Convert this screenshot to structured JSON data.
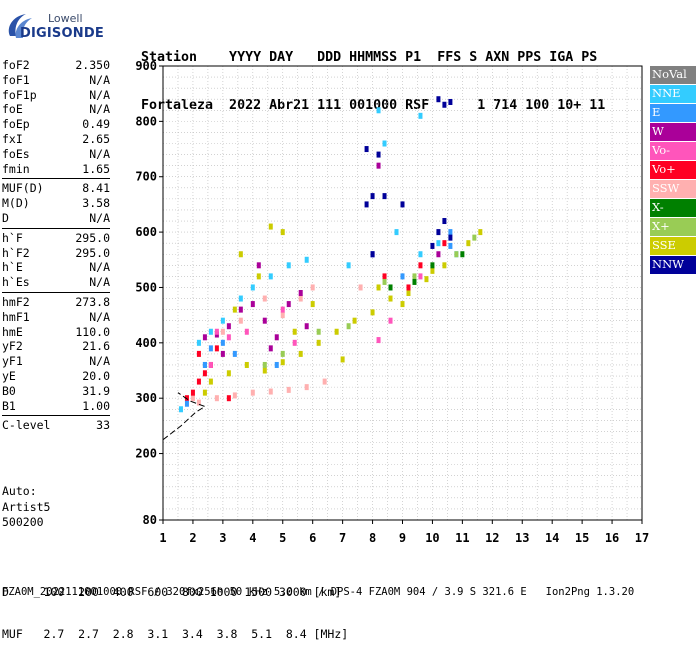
{
  "logo": {
    "brand_top": "Lowell",
    "brand_main": "DIGISONDE"
  },
  "header": {
    "line1": "Station    YYYY DAY   DDD HHMMSS P1  FFS S AXN PPS IGA PS",
    "line2": "Fortaleza  2022 Abr21 111 001000 RSF      1 714 100 10+ 11"
  },
  "params": [
    {
      "name": "foF2",
      "value": "2.350"
    },
    {
      "name": "foF1",
      "value": "N/A"
    },
    {
      "name": "foF1p",
      "value": "N/A"
    },
    {
      "name": "foE",
      "value": "N/A"
    },
    {
      "name": "foEp",
      "value": "0.49"
    },
    {
      "name": "fxI",
      "value": "2.65"
    },
    {
      "name": "foEs",
      "value": "N/A"
    },
    {
      "name": "fmin",
      "value": "1.65"
    },
    {
      "name": "MUF(D)",
      "value": "8.41"
    },
    {
      "name": "M(D)",
      "value": "3.58"
    },
    {
      "name": "D",
      "value": "N/A"
    },
    {
      "name": "h`F",
      "value": "295.0"
    },
    {
      "name": "h`F2",
      "value": "295.0"
    },
    {
      "name": "h`E",
      "value": "N/A"
    },
    {
      "name": "h`Es",
      "value": "N/A"
    },
    {
      "name": "hmF2",
      "value": "273.8"
    },
    {
      "name": "hmF1",
      "value": "N/A"
    },
    {
      "name": "hmE",
      "value": "110.0"
    },
    {
      "name": "yF2",
      "value": "21.6"
    },
    {
      "name": "yF1",
      "value": "N/A"
    },
    {
      "name": "yE",
      "value": "20.0"
    },
    {
      "name": "B0",
      "value": "31.9"
    },
    {
      "name": "B1",
      "value": "1.00"
    },
    {
      "name": "C-level",
      "value": "33"
    }
  ],
  "auto": {
    "line1": "Auto:",
    "line2": "Artist5",
    "line3": "500200"
  },
  "muf_table": {
    "d_line": "D     100  200  400  600  800 1000 1500 3000 [km]",
    "muf_line": "MUF   2.7  2.7  2.8  3.1  3.4  3.8  5.1  8.4 [MHz]"
  },
  "footer": "FZA0M_2022111001000.RSF / 320fx256h 50 kHz 5.0 km / DPS-4 FZA0M 904 / 3.9 S 321.6 E   Ion2Png 1.3.20",
  "legend": [
    {
      "label": "NoVal",
      "color": "#808080"
    },
    {
      "label": "NNE",
      "color": "#33ccff"
    },
    {
      "label": "E",
      "color": "#3399ff"
    },
    {
      "label": "W",
      "color": "#aa0099"
    },
    {
      "label": "Vo-",
      "color": "#ff55bb"
    },
    {
      "label": "Vo+",
      "color": "#ff0022"
    },
    {
      "label": "SSW",
      "color": "#ffb0b0"
    },
    {
      "label": "X-",
      "color": "#008000"
    },
    {
      "label": "X+",
      "color": "#99cc55"
    },
    {
      "label": "SSE",
      "color": "#cccc00"
    },
    {
      "label": "NNW",
      "color": "#000099"
    }
  ],
  "chart_data": {
    "type": "scatter",
    "title": "",
    "xlabel": "",
    "ylabel": "",
    "xlim": [
      1,
      17
    ],
    "ylim": [
      80,
      900
    ],
    "x_ticks": [
      1,
      2,
      3,
      4,
      5,
      6,
      7,
      8,
      9,
      10,
      11,
      12,
      13,
      14,
      15,
      16,
      17
    ],
    "y_ticks": [
      80,
      200,
      300,
      400,
      500,
      600,
      700,
      800,
      900
    ],
    "grid": true,
    "series": [
      {
        "name": "SSE",
        "color": "#cccc00",
        "points": [
          [
            2.6,
            330
          ],
          [
            3.2,
            345
          ],
          [
            3.8,
            360
          ],
          [
            4.4,
            350
          ],
          [
            5.0,
            365
          ],
          [
            5.6,
            380
          ],
          [
            6.2,
            400
          ],
          [
            6.8,
            420
          ],
          [
            7.4,
            440
          ],
          [
            8.0,
            455
          ],
          [
            8.6,
            480
          ],
          [
            9.2,
            490
          ],
          [
            9.8,
            515
          ],
          [
            10.4,
            540
          ],
          [
            11.2,
            580
          ],
          [
            11.6,
            600
          ],
          [
            3.6,
            560
          ],
          [
            4.2,
            520
          ],
          [
            4.6,
            610
          ],
          [
            5.0,
            600
          ],
          [
            5.4,
            420
          ],
          [
            6.0,
            470
          ],
          [
            3.4,
            460
          ],
          [
            2.4,
            310
          ],
          [
            7.0,
            370
          ],
          [
            8.2,
            500
          ],
          [
            9.0,
            470
          ],
          [
            10.0,
            530
          ]
        ]
      },
      {
        "name": "SSW",
        "color": "#ffb0b0",
        "points": [
          [
            2.2,
            292
          ],
          [
            2.8,
            300
          ],
          [
            3.4,
            305
          ],
          [
            4.0,
            310
          ],
          [
            4.6,
            312
          ],
          [
            5.2,
            315
          ],
          [
            5.8,
            320
          ],
          [
            6.4,
            330
          ],
          [
            5.0,
            450
          ],
          [
            5.6,
            480
          ],
          [
            6.0,
            500
          ],
          [
            4.4,
            480
          ],
          [
            7.6,
            500
          ],
          [
            3.0,
            420
          ],
          [
            3.6,
            440
          ],
          [
            2.0,
            300
          ]
        ]
      },
      {
        "name": "Vo+",
        "color": "#ff0022",
        "points": [
          [
            1.8,
            300
          ],
          [
            2.0,
            310
          ],
          [
            2.2,
            330
          ],
          [
            2.4,
            345
          ],
          [
            2.6,
            360
          ],
          [
            2.2,
            380
          ],
          [
            2.8,
            390
          ],
          [
            8.4,
            520
          ],
          [
            9.2,
            500
          ],
          [
            10.4,
            580
          ],
          [
            9.6,
            540
          ],
          [
            3.2,
            300
          ]
        ]
      },
      {
        "name": "W",
        "color": "#aa0099",
        "points": [
          [
            2.4,
            410
          ],
          [
            2.8,
            415
          ],
          [
            3.2,
            430
          ],
          [
            3.6,
            460
          ],
          [
            4.0,
            470
          ],
          [
            4.4,
            440
          ],
          [
            4.8,
            410
          ],
          [
            5.2,
            470
          ],
          [
            5.6,
            490
          ],
          [
            4.2,
            540
          ],
          [
            8.0,
            560
          ],
          [
            8.2,
            720
          ],
          [
            10.2,
            560
          ],
          [
            3.0,
            380
          ],
          [
            4.6,
            390
          ],
          [
            5.8,
            430
          ]
        ]
      },
      {
        "name": "NNE",
        "color": "#33ccff",
        "points": [
          [
            2.2,
            400
          ],
          [
            2.6,
            420
          ],
          [
            3.0,
            440
          ],
          [
            3.6,
            480
          ],
          [
            4.0,
            500
          ],
          [
            4.6,
            520
          ],
          [
            5.2,
            540
          ],
          [
            5.8,
            550
          ],
          [
            7.2,
            540
          ],
          [
            8.8,
            600
          ],
          [
            9.6,
            560
          ],
          [
            10.8,
            560
          ],
          [
            10.2,
            580
          ],
          [
            2.4,
            360
          ],
          [
            1.6,
            280
          ],
          [
            8.2,
            820
          ],
          [
            8.4,
            760
          ],
          [
            9.6,
            810
          ]
        ]
      },
      {
        "name": "E",
        "color": "#3399ff",
        "points": [
          [
            2.4,
            360
          ],
          [
            2.6,
            390
          ],
          [
            3.0,
            400
          ],
          [
            3.4,
            380
          ],
          [
            4.8,
            360
          ],
          [
            8.0,
            560
          ],
          [
            9.0,
            520
          ],
          [
            10.6,
            575
          ],
          [
            10.6,
            600
          ],
          [
            1.8,
            290
          ]
        ]
      },
      {
        "name": "Vo-",
        "color": "#ff55bb",
        "points": [
          [
            2.8,
            420
          ],
          [
            3.2,
            410
          ],
          [
            3.8,
            420
          ],
          [
            5.0,
            460
          ],
          [
            5.4,
            400
          ],
          [
            9.6,
            520
          ],
          [
            8.6,
            440
          ],
          [
            8.2,
            405
          ],
          [
            2.6,
            360
          ]
        ]
      },
      {
        "name": "X+",
        "color": "#99cc55",
        "points": [
          [
            4.4,
            360
          ],
          [
            5.0,
            380
          ],
          [
            6.2,
            420
          ],
          [
            8.4,
            510
          ],
          [
            9.4,
            520
          ],
          [
            10.8,
            560
          ],
          [
            11.4,
            590
          ],
          [
            7.2,
            430
          ]
        ]
      },
      {
        "name": "X-",
        "color": "#008000",
        "points": [
          [
            8.6,
            500
          ],
          [
            9.4,
            510
          ],
          [
            10.0,
            540
          ],
          [
            11.0,
            560
          ]
        ]
      },
      {
        "name": "NNW",
        "color": "#000099",
        "points": [
          [
            7.8,
            650
          ],
          [
            8.0,
            665
          ],
          [
            8.4,
            665
          ],
          [
            9.0,
            650
          ],
          [
            10.2,
            600
          ],
          [
            10.4,
            620
          ],
          [
            10.6,
            590
          ],
          [
            10.0,
            575
          ],
          [
            8.0,
            560
          ],
          [
            10.2,
            840
          ],
          [
            10.4,
            830
          ],
          [
            10.6,
            835
          ],
          [
            7.8,
            750
          ],
          [
            8.2,
            740
          ]
        ]
      }
    ],
    "trace_line": [
      [
        1.0,
        225
      ],
      [
        1.6,
        250
      ],
      [
        2.1,
        275
      ],
      [
        2.4,
        285
      ],
      [
        1.9,
        295
      ],
      [
        1.5,
        310
      ]
    ]
  }
}
